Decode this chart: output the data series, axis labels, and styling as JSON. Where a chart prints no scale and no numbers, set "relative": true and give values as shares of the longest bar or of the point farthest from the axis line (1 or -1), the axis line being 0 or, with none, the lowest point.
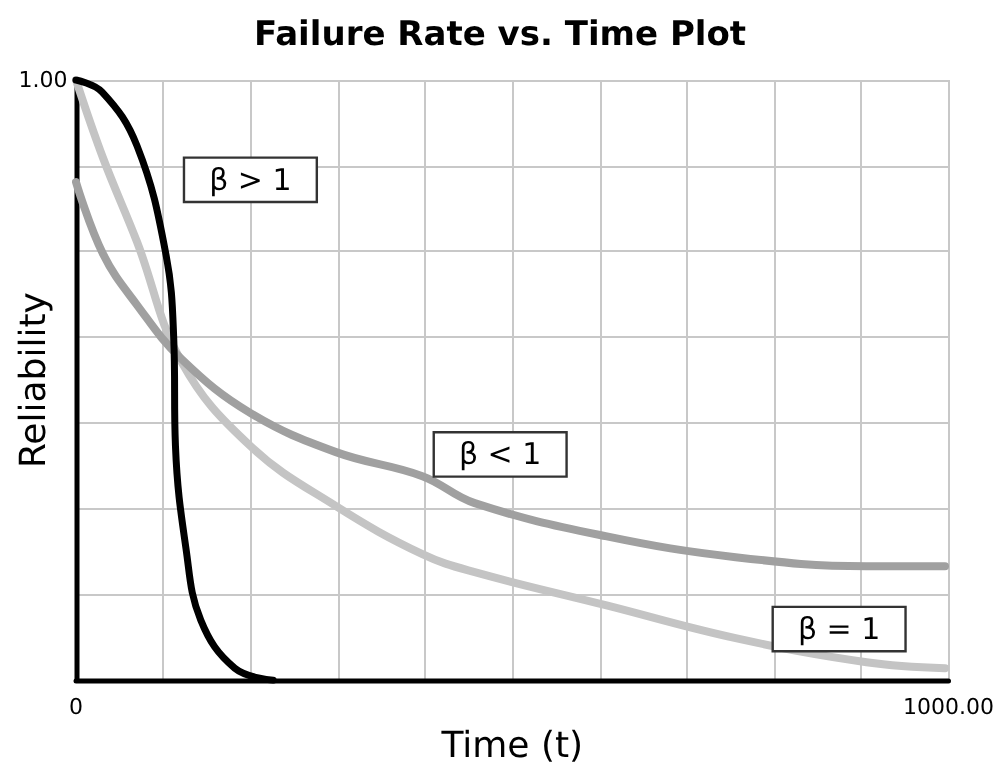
{
  "chart_data": {
    "type": "line",
    "title": "Failure Rate vs. Time Plot",
    "xlabel": "Time (t)",
    "ylabel": "Reliability",
    "relative": true,
    "xlim": [
      0,
      1000
    ],
    "xticks": [
      0,
      {
        "value": 100,
        "label": null
      },
      {
        "value": 200,
        "label": null
      },
      {
        "value": 300,
        "label": null
      },
      {
        "value": 400,
        "label": null
      },
      {
        "value": 500,
        "label": null
      },
      {
        "value": 600,
        "label": null
      },
      {
        "value": 700,
        "label": null
      },
      {
        "value": 800,
        "label": null
      },
      {
        "value": 900,
        "label": null
      },
      {
        "value": 1000,
        "label": "1000.00"
      }
    ],
    "grid": true,
    "marker": "none",
    "line_style": "solid",
    "series": [
      {
        "color": "#000000",
        "x": [
          0,
          30,
          70,
          103,
          112,
          114,
          126,
          143,
          182,
          226
        ],
        "values": [
          1,
          0.98,
          0.89,
          0.71,
          0.57,
          0.39,
          0.22,
          0.1,
          0.02,
          0
        ]
      },
      {
        "color": "#c4c4c4",
        "x": [
          0,
          31,
          70,
          121,
          200,
          298,
          397,
          457,
          607,
          756,
          906,
          996
        ],
        "values": [
          1,
          0.87,
          0.73,
          0.53,
          0.39,
          0.29,
          0.21,
          0.18,
          0.125,
          0.07,
          0.03,
          0.02
        ]
      },
      {
        "color": "#a0a0a0",
        "x": [
          0,
          31,
          70,
          121,
          200,
          298,
          397,
          457,
          607,
          756,
          906,
          996
        ],
        "values": [
          0.83,
          0.71,
          0.625,
          0.535,
          0.445,
          0.38,
          0.34,
          0.295,
          0.24,
          0.205,
          0.19,
          0.19
        ]
      }
    ],
    "annotations": [
      "1.00",
      "β > 1",
      "β < 1",
      "β = 1"
    ]
  }
}
